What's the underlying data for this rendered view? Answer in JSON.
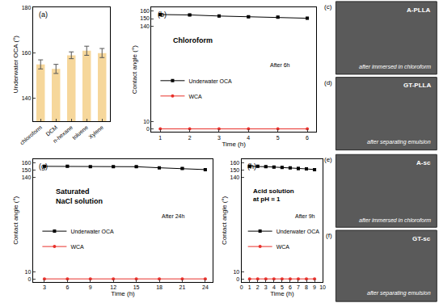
{
  "chart_data": [
    {
      "type": "bar",
      "label": "(a)",
      "y_label": "Underwater OCA (°)",
      "categories": [
        "chloroform",
        "DCM",
        "n-hexane",
        "toluene",
        "Xylene"
      ],
      "values": [
        155,
        153,
        159,
        161,
        160
      ],
      "errors": [
        2,
        2,
        1.5,
        2,
        2
      ],
      "color": "#f6d79b",
      "ylim": [
        130,
        180
      ],
      "yticks": [
        140,
        160,
        180
      ]
    },
    {
      "type": "line",
      "label": "(b)",
      "title": "Chloroform",
      "annotation": "After 6h",
      "x_label": "Time (h)",
      "y_label": "Contact angle (°)",
      "x": [
        1,
        2,
        3,
        4,
        5,
        6
      ],
      "series": [
        {
          "name": "Underwater OCA",
          "color": "#000000",
          "marker": "square",
          "values": [
            155.5,
            155,
            153.5,
            152.5,
            152,
            150.5
          ],
          "errors": [
            1.2,
            1.2,
            1.2,
            1.2,
            1.2,
            1.2
          ]
        },
        {
          "name": "WCA",
          "color": "#e8302a",
          "marker": "circle",
          "values": [
            0,
            0,
            0,
            0,
            0,
            0
          ]
        }
      ],
      "xlim": [
        0.7,
        6.3
      ],
      "xticks": [
        1,
        2,
        3,
        4,
        5,
        6
      ],
      "ylim": [
        -4,
        165
      ],
      "yticks": [
        0,
        10,
        140,
        150,
        160
      ],
      "legend": "center left"
    },
    {
      "type": "line",
      "label": "(g)",
      "title": "Saturated\nNaCl solution",
      "annotation": "After 24h",
      "x_label": "Time (h)",
      "y_label": "Contact angle (°)",
      "x": [
        3,
        6,
        9,
        12,
        15,
        18,
        21,
        24
      ],
      "series": [
        {
          "name": "Underwater OCA",
          "color": "#000000",
          "marker": "square",
          "values": [
            155,
            155,
            154.5,
            154.5,
            154.5,
            153,
            152,
            150.5
          ],
          "errors": [
            1,
            1,
            1,
            1,
            1,
            1,
            1,
            1
          ]
        },
        {
          "name": "WCA",
          "color": "#e8302a",
          "marker": "circle",
          "values": [
            0,
            0,
            0,
            0,
            0,
            0,
            0,
            0
          ]
        }
      ],
      "xlim": [
        1.5,
        25
      ],
      "xticks": [
        3,
        6,
        9,
        12,
        15,
        18,
        21,
        24
      ],
      "ylim": [
        -4,
        165
      ],
      "yticks": [
        0,
        10,
        140,
        150,
        160
      ],
      "legend": "center left"
    },
    {
      "type": "line",
      "label": "(h)",
      "title": "Acid solution\nat pH = 1",
      "annotation": "After 9h",
      "x_label": "Time (h)",
      "y_label": "Contact angle (°)",
      "x": [
        1,
        2,
        3,
        4,
        5,
        6,
        7,
        8,
        9
      ],
      "series": [
        {
          "name": "Underwater OCA",
          "color": "#000000",
          "marker": "square",
          "values": [
            155,
            155,
            154.5,
            154,
            153.5,
            153,
            152,
            151.5,
            150.5
          ],
          "errors": [
            1.2,
            1.2,
            1.2,
            1.2,
            1.2,
            1.2,
            1.5,
            1.5,
            1.5
          ]
        },
        {
          "name": "WCA",
          "color": "#e8302a",
          "marker": "circle",
          "values": [
            0,
            0,
            0,
            0,
            0,
            0,
            0,
            0,
            0
          ]
        }
      ],
      "xlim": [
        0,
        10
      ],
      "xticks": [
        0,
        1,
        2,
        3,
        4,
        5,
        6,
        7,
        8,
        9,
        10
      ],
      "ylim": [
        -4,
        165
      ],
      "yticks": [
        0,
        10,
        140,
        150,
        160
      ],
      "legend": "center left"
    }
  ],
  "images": [
    {
      "label": "(c)",
      "title": "A-PLLA",
      "caption": "after immersed in chloroform"
    },
    {
      "label": "(d)",
      "title": "GT-PLLA",
      "caption": "after separating emulsion"
    },
    {
      "label": "(e)",
      "title": "A-sc",
      "caption": "after immersed in chloroform"
    },
    {
      "label": "(f)",
      "title": "GT-sc",
      "caption": "after separating emulsion"
    }
  ]
}
